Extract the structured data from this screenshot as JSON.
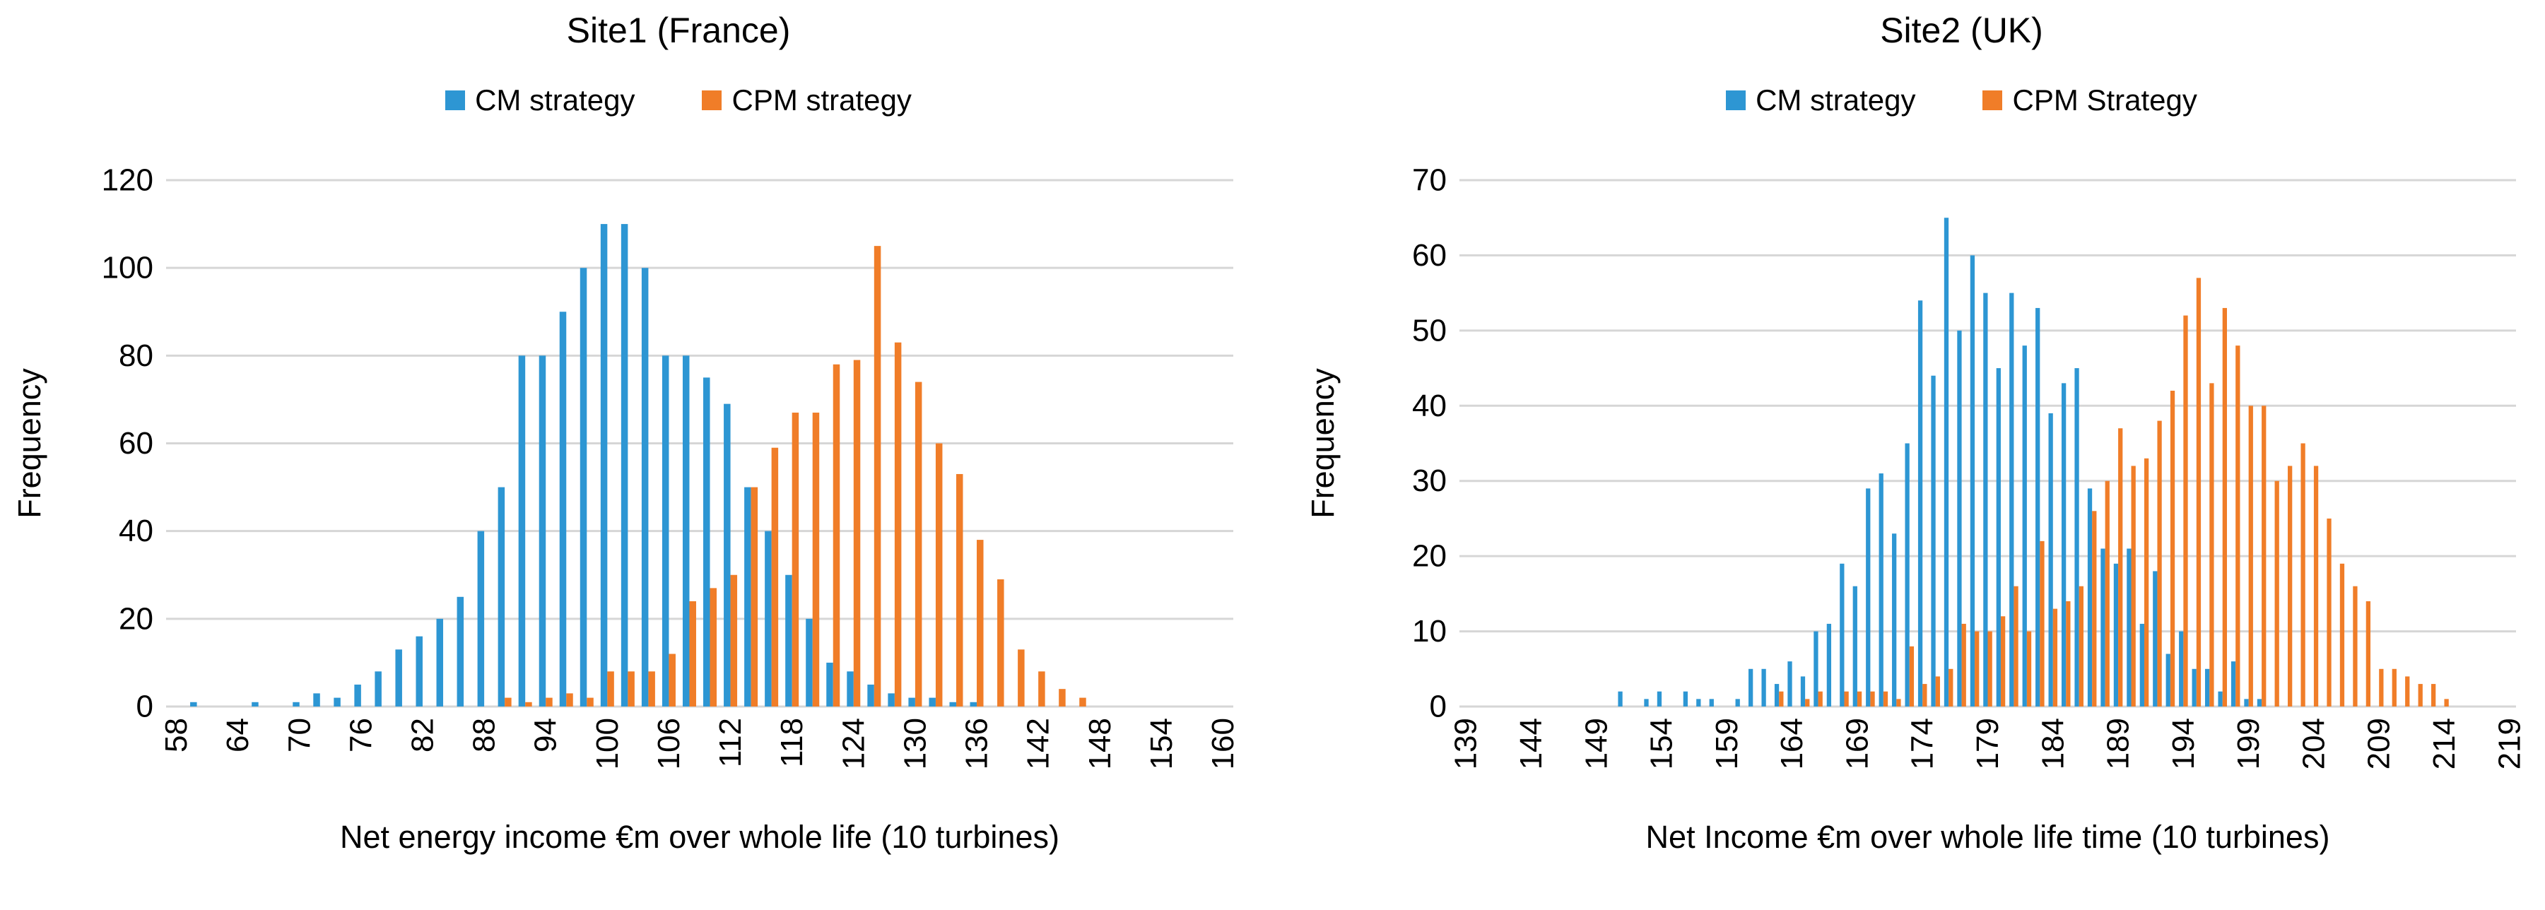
{
  "colors": {
    "cm_blue": "#2d96d3",
    "cpm_orange": "#f07d28",
    "gridline": "#d6d6d6",
    "text": "#000000",
    "background": "#ffffff"
  },
  "chart_data": [
    {
      "type": "bar",
      "title": "Site1 (France)",
      "xlabel": "Net energy income €m over whole life (10 turbines)",
      "ylabel": "Frequency",
      "ylim": [
        0,
        120
      ],
      "y_ticks": [
        0,
        20,
        40,
        60,
        80,
        100,
        120
      ],
      "grid": "horizontal",
      "legend_position": "top",
      "label_every": 3,
      "x_tick_labels": [
        58,
        64,
        70,
        76,
        82,
        88,
        94,
        100,
        106,
        112,
        118,
        124,
        130,
        136,
        142,
        148,
        154,
        160
      ],
      "categories": [
        58,
        60,
        62,
        64,
        66,
        68,
        70,
        72,
        74,
        76,
        78,
        80,
        82,
        84,
        86,
        88,
        90,
        92,
        94,
        96,
        98,
        100,
        102,
        104,
        106,
        108,
        110,
        112,
        114,
        116,
        118,
        120,
        122,
        124,
        126,
        128,
        130,
        132,
        134,
        136,
        138,
        140,
        142,
        144,
        146,
        148,
        150,
        152,
        154,
        156,
        158,
        160
      ],
      "series": [
        {
          "name": "CM strategy",
          "color": "#2d96d3",
          "values": [
            0,
            1,
            0,
            0,
            1,
            0,
            1,
            3,
            2,
            5,
            8,
            13,
            16,
            20,
            25,
            40,
            50,
            80,
            80,
            90,
            100,
            110,
            110,
            100,
            80,
            80,
            75,
            69,
            50,
            40,
            30,
            20,
            10,
            8,
            5,
            3,
            2,
            2,
            1,
            1,
            0,
            0,
            0,
            0,
            0,
            0,
            0,
            0,
            0,
            0,
            0,
            0
          ]
        },
        {
          "name": "CPM strategy",
          "color": "#f07d28",
          "values": [
            0,
            0,
            0,
            0,
            0,
            0,
            0,
            0,
            0,
            0,
            0,
            0,
            0,
            0,
            0,
            0,
            2,
            1,
            2,
            3,
            2,
            8,
            8,
            8,
            12,
            24,
            27,
            30,
            50,
            59,
            67,
            67,
            78,
            79,
            105,
            83,
            74,
            60,
            53,
            38,
            29,
            13,
            8,
            4,
            2,
            0,
            0,
            0,
            0,
            0,
            0,
            0
          ]
        }
      ]
    },
    {
      "type": "bar",
      "title": "Site2 (UK)",
      "xlabel": "Net Income €m over whole life time (10 turbines)",
      "ylabel": "Frequency",
      "ylim": [
        0,
        70
      ],
      "y_ticks": [
        0,
        10,
        20,
        30,
        40,
        50,
        60,
        70
      ],
      "grid": "horizontal",
      "legend_position": "top",
      "label_every": 5,
      "x_tick_labels": [
        139,
        144,
        149,
        154,
        159,
        164,
        169,
        174,
        179,
        184,
        189,
        194,
        199,
        204,
        209,
        214,
        219
      ],
      "categories": [
        139,
        140,
        141,
        142,
        143,
        144,
        145,
        146,
        147,
        148,
        149,
        150,
        151,
        152,
        153,
        154,
        155,
        156,
        157,
        158,
        159,
        160,
        161,
        162,
        163,
        164,
        165,
        166,
        167,
        168,
        169,
        170,
        171,
        172,
        173,
        174,
        175,
        176,
        177,
        178,
        179,
        180,
        181,
        182,
        183,
        184,
        185,
        186,
        187,
        188,
        189,
        190,
        191,
        192,
        193,
        194,
        195,
        196,
        197,
        198,
        199,
        200,
        201,
        202,
        203,
        204,
        205,
        206,
        207,
        208,
        209,
        210,
        211,
        212,
        213,
        214,
        215,
        216,
        217,
        218,
        219
      ],
      "series": [
        {
          "name": "CM strategy",
          "color": "#2d96d3",
          "values": [
            0,
            0,
            0,
            0,
            0,
            0,
            0,
            0,
            0,
            0,
            0,
            0,
            2,
            0,
            1,
            2,
            0,
            2,
            1,
            1,
            0,
            1,
            5,
            5,
            3,
            6,
            4,
            10,
            11,
            19,
            16,
            29,
            31,
            23,
            35,
            54,
            44,
            65,
            50,
            60,
            55,
            45,
            55,
            48,
            53,
            39,
            43,
            45,
            29,
            21,
            19,
            21,
            11,
            18,
            7,
            10,
            5,
            5,
            2,
            6,
            1,
            1,
            0,
            0,
            0,
            0,
            0,
            0,
            0,
            0,
            0,
            0,
            0,
            0,
            0,
            0,
            0,
            0,
            0,
            0,
            0
          ]
        },
        {
          "name": "CPM Strategy",
          "color": "#f07d28",
          "values": [
            0,
            0,
            0,
            0,
            0,
            0,
            0,
            0,
            0,
            0,
            0,
            0,
            0,
            0,
            0,
            0,
            0,
            0,
            0,
            0,
            0,
            0,
            0,
            0,
            2,
            0,
            1,
            2,
            0,
            2,
            2,
            2,
            2,
            1,
            8,
            3,
            4,
            5,
            11,
            10,
            10,
            12,
            16,
            10,
            22,
            13,
            14,
            16,
            26,
            30,
            37,
            32,
            33,
            38,
            42,
            52,
            57,
            43,
            53,
            48,
            40,
            40,
            30,
            32,
            35,
            32,
            25,
            19,
            16,
            14,
            5,
            5,
            4,
            3,
            3,
            1,
            0,
            0,
            0,
            0,
            0
          ]
        }
      ]
    }
  ]
}
